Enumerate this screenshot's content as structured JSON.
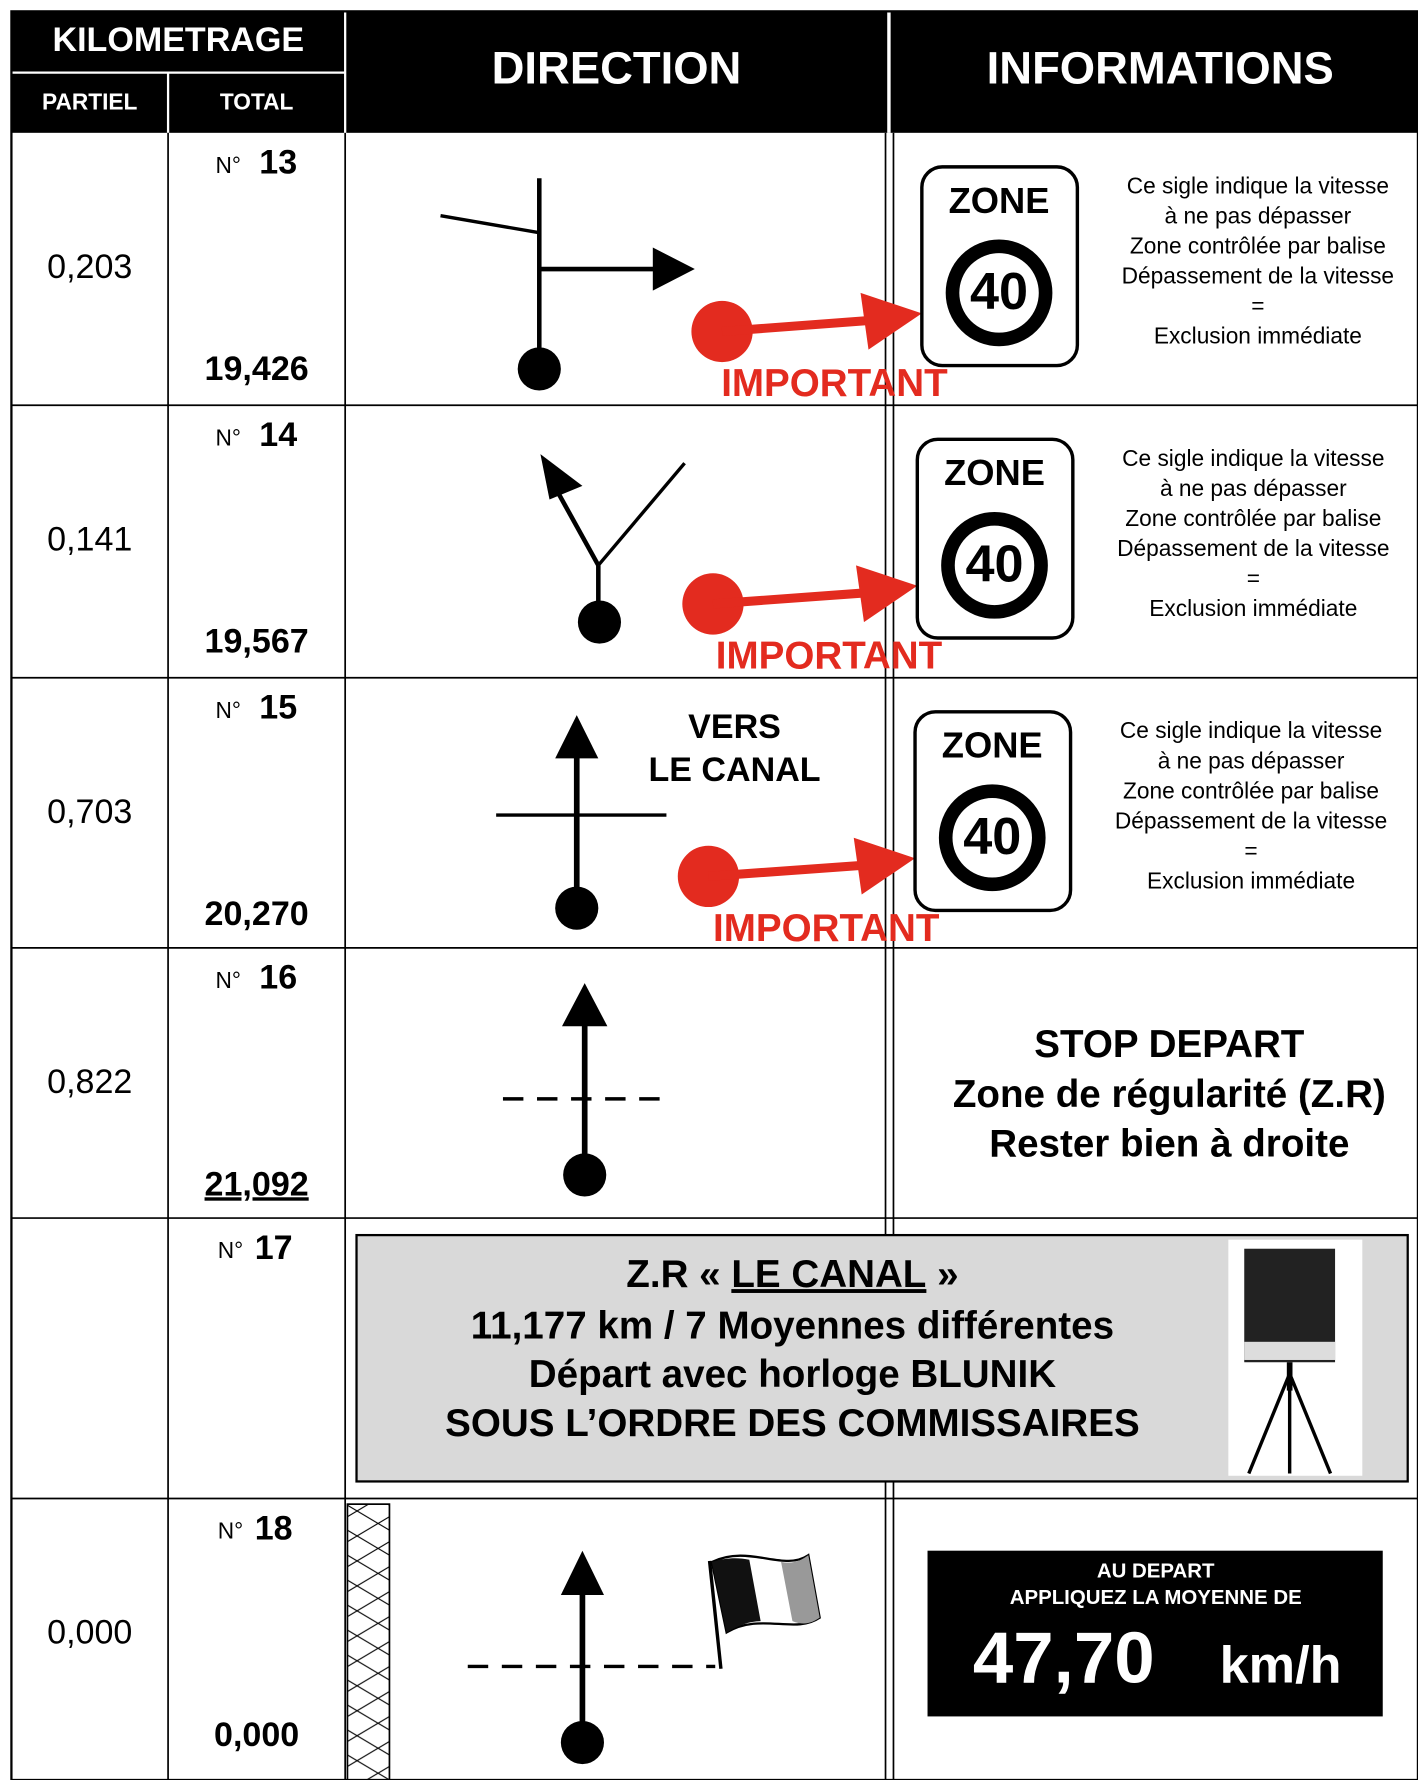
{
  "header": {
    "kilometrage": "KILOMETRAGE",
    "partiel": "PARTIEL",
    "total": "TOTAL",
    "direction": "DIRECTION",
    "informations": "INFORMATIONS"
  },
  "rows": [
    {
      "number_prefix": "N°",
      "number": "13",
      "partiel": "0,203",
      "total": "19,426",
      "sign": {
        "zone": "ZONE",
        "speed": "40"
      },
      "important": "IMPORTANT",
      "info": [
        "Ce sigle indique la vitesse",
        "à ne pas dépasser",
        "Zone contrôlée par balise",
        "Dépassement de la vitesse",
        "=",
        "Exclusion immédiate"
      ]
    },
    {
      "number_prefix": "N°",
      "number": "14",
      "partiel": "0,141",
      "total": "19,567",
      "sign": {
        "zone": "ZONE",
        "speed": "40"
      },
      "important": "IMPORTANT",
      "info": [
        "Ce sigle indique la vitesse",
        "à ne pas dépasser",
        "Zone contrôlée par balise",
        "Dépassement de la vitesse",
        "=",
        "Exclusion immédiate"
      ]
    },
    {
      "number_prefix": "N°",
      "number": "15",
      "partiel": "0,703",
      "total": "20,270",
      "direction_label": [
        "VERS",
        "LE CANAL"
      ],
      "sign": {
        "zone": "ZONE",
        "speed": "40"
      },
      "important": "IMPORTANT",
      "info": [
        "Ce sigle indique la vitesse",
        "à ne pas dépasser",
        "Zone contrôlée par balise",
        "Dépassement de la vitesse",
        "=",
        "Exclusion immédiate"
      ]
    },
    {
      "number_prefix": "N°",
      "number": "16",
      "partiel": "0,822",
      "total": "21,092",
      "info": [
        "STOP DEPART",
        "Zone de régularité (Z.R)",
        "Rester bien à droite"
      ]
    },
    {
      "number_prefix": "N°",
      "number": "17",
      "banner": {
        "title_start": "Z.R « ",
        "title_name": "LE CANAL",
        "title_end": " »",
        "lines": [
          "11,177 km / 7 Moyennes différentes",
          "Départ avec horloge BLUNIK",
          "SOUS L’ORDRE DES COMMISSAIRES"
        ]
      }
    },
    {
      "number_prefix": "N°",
      "number": "18",
      "partiel": "0,000",
      "total": "0,000",
      "average": {
        "line1": "AU DEPART",
        "line2": "APPLIQUEZ LA MOYENNE DE",
        "speed": "47,70",
        "unit": "km/h"
      }
    }
  ]
}
